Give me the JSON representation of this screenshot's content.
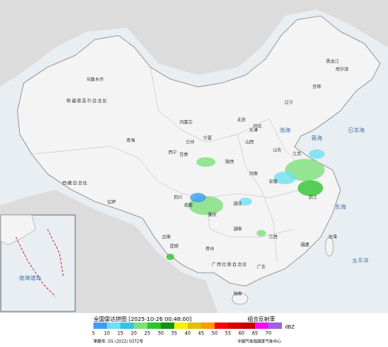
{
  "header": {
    "title": "全国雷达拼图 [2025-10-26 00:48:00]",
    "product": "组合反射率",
    "unit": "dBZ"
  },
  "legend": [
    {
      "value": 5,
      "color": "#3f9cf4"
    },
    {
      "value": 10,
      "color": "#6fe0f0"
    },
    {
      "value": 15,
      "color": "#35c2e8"
    },
    {
      "value": 20,
      "color": "#7ce07c"
    },
    {
      "value": 25,
      "color": "#2fc42f"
    },
    {
      "value": 30,
      "color": "#169016"
    },
    {
      "value": 35,
      "color": "#f2f200"
    },
    {
      "value": 40,
      "color": "#e0c000"
    },
    {
      "value": 45,
      "color": "#ff9a00"
    },
    {
      "value": 50,
      "color": "#ff0000"
    },
    {
      "value": 55,
      "color": "#d40000"
    },
    {
      "value": 60,
      "color": "#c00000"
    },
    {
      "value": 65,
      "color": "#ee10ee"
    },
    {
      "value": 70,
      "color": "#a060e0"
    }
  ],
  "footer": {
    "approval": "审图号: GS (2022) 0372号",
    "source": "中国气象局国家气象中心"
  },
  "places": [
    "新疆维吾尔自治区",
    "乌鲁木齐",
    "西藏自治区",
    "拉萨",
    "青海",
    "西宁",
    "甘肃",
    "兰州",
    "内蒙古",
    "宁夏",
    "陕西",
    "山西",
    "河北",
    "北京",
    "天津",
    "辽宁",
    "吉林",
    "黑龙江",
    "哈尔滨",
    "山东",
    "河南",
    "江苏",
    "安徽",
    "湖北",
    "四川",
    "成都",
    "重庆",
    "湖南",
    "江西",
    "浙江",
    "贵州",
    "云南",
    "昆明",
    "广西壮族自治区",
    "广东",
    "福建",
    "台湾",
    "海南",
    "渤海",
    "黄海",
    "东海",
    "日本海",
    "太平洋",
    "南海诸岛"
  ]
}
